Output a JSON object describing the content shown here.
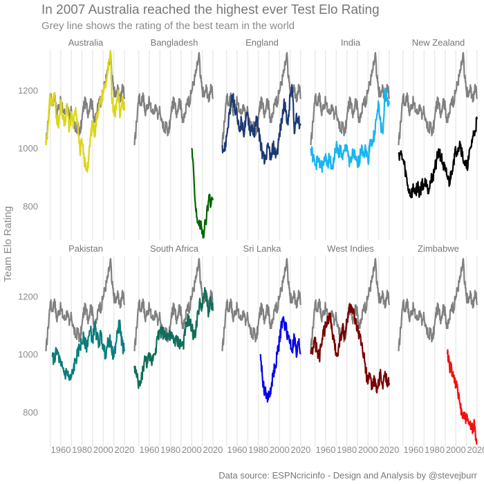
{
  "chart_data": {
    "type": "line",
    "title": "In 2007 Australia reached the highest ever Test Elo Rating",
    "subtitle": "Grey line shows the rating of the best team in the world",
    "ylabel": "Team Elo Rating",
    "caption": "Data source: ESPNcricinfo - Design and Analysis by @stevejburr",
    "x_ticks": [
      "1960",
      "1980",
      "2000",
      "2020"
    ],
    "y_ticks": [
      "800",
      "1000",
      "1200"
    ],
    "xlim": [
      1945,
      2022
    ],
    "ylim": [
      680,
      1340
    ],
    "grid": true,
    "best_team": {
      "color": "#808080",
      "x": [
        1946,
        1948,
        1950,
        1952,
        1954,
        1956,
        1958,
        1960,
        1962,
        1964,
        1966,
        1968,
        1970,
        1972,
        1974,
        1976,
        1978,
        1980,
        1982,
        1984,
        1986,
        1988,
        1990,
        1992,
        1994,
        1996,
        1998,
        2000,
        2002,
        2004,
        2006,
        2007,
        2008,
        2010,
        2012,
        2014,
        2016,
        2018,
        2020
      ],
      "values": [
        1010,
        1090,
        1180,
        1150,
        1190,
        1120,
        1150,
        1160,
        1130,
        1120,
        1150,
        1100,
        1130,
        1090,
        1060,
        1080,
        1050,
        1100,
        1160,
        1150,
        1120,
        1170,
        1140,
        1090,
        1120,
        1170,
        1160,
        1200,
        1230,
        1260,
        1300,
        1330,
        1250,
        1200,
        1180,
        1210,
        1160,
        1220,
        1170
      ]
    },
    "panels": [
      {
        "team": "Australia",
        "color": "#dcd616",
        "x": [
          1946,
          1948,
          1950,
          1952,
          1954,
          1956,
          1958,
          1960,
          1962,
          1964,
          1966,
          1968,
          1970,
          1972,
          1974,
          1976,
          1978,
          1980,
          1982,
          1984,
          1986,
          1988,
          1990,
          1992,
          1994,
          1996,
          1998,
          2000,
          2002,
          2004,
          2006,
          2007,
          2008,
          2010,
          2012,
          2014,
          2016,
          2018,
          2020
        ],
        "values": [
          1010,
          1090,
          1180,
          1150,
          1190,
          1110,
          1070,
          1160,
          1100,
          1080,
          1150,
          1060,
          1120,
          1080,
          1140,
          1090,
          990,
          1020,
          960,
          930,
          950,
          1040,
          1090,
          1050,
          1110,
          1150,
          1160,
          1200,
          1220,
          1260,
          1300,
          1330,
          1180,
          1120,
          1130,
          1200,
          1110,
          1180,
          1130
        ]
      },
      {
        "team": "Bangladesh",
        "color": "#006400",
        "x": [
          2000,
          2002,
          2003,
          2004,
          2005,
          2006,
          2007,
          2008,
          2009,
          2010,
          2011,
          2012,
          2013,
          2014,
          2015,
          2016,
          2017,
          2018,
          2019,
          2020
        ],
        "values": [
          1000,
          900,
          820,
          780,
          760,
          740,
          750,
          720,
          730,
          710,
          700,
          720,
          740,
          760,
          790,
          820,
          840,
          800,
          830,
          820
        ]
      },
      {
        "team": "England",
        "color": "#1b3a72",
        "x": [
          1946,
          1948,
          1950,
          1952,
          1954,
          1956,
          1958,
          1960,
          1962,
          1964,
          1966,
          1968,
          1970,
          1972,
          1974,
          1976,
          1978,
          1980,
          1982,
          1984,
          1986,
          1988,
          1990,
          1992,
          1994,
          1996,
          1998,
          2000,
          2002,
          2004,
          2006,
          2008,
          2010,
          2012,
          2014,
          2016,
          2018,
          2020
        ],
        "values": [
          1010,
          990,
          1040,
          1100,
          1150,
          1180,
          1130,
          1110,
          1060,
          1100,
          1050,
          1090,
          1120,
          1060,
          1080,
          1040,
          1110,
          1070,
          1020,
          980,
          950,
          990,
          1000,
          960,
          1010,
          980,
          990,
          1050,
          1090,
          1150,
          1130,
          1080,
          1180,
          1210,
          1050,
          1120,
          1090,
          1080
        ]
      },
      {
        "team": "India",
        "color": "#1ab5ef",
        "x": [
          1946,
          1948,
          1950,
          1952,
          1954,
          1956,
          1958,
          1960,
          1962,
          1964,
          1966,
          1968,
          1970,
          1972,
          1974,
          1976,
          1978,
          1980,
          1982,
          1984,
          1986,
          1988,
          1990,
          1992,
          1994,
          1996,
          1998,
          2000,
          2002,
          2004,
          2006,
          2008,
          2010,
          2012,
          2014,
          2016,
          2018,
          2020
        ],
        "values": [
          1000,
          970,
          940,
          950,
          960,
          930,
          940,
          980,
          950,
          970,
          930,
          960,
          1010,
          980,
          1000,
          960,
          990,
          1010,
          960,
          950,
          990,
          960,
          940,
          960,
          1010,
          980,
          1000,
          950,
          1030,
          1010,
          1050,
          1100,
          1150,
          1080,
          1050,
          1200,
          1170,
          1150
        ]
      },
      {
        "team": "New Zealand",
        "color": "#000000",
        "x": [
          1946,
          1948,
          1950,
          1952,
          1954,
          1956,
          1958,
          1960,
          1962,
          1964,
          1966,
          1968,
          1970,
          1972,
          1974,
          1976,
          1978,
          1980,
          1982,
          1984,
          1986,
          1988,
          1990,
          1992,
          1994,
          1996,
          1998,
          2000,
          2002,
          2004,
          2006,
          2008,
          2010,
          2012,
          2014,
          2016,
          2018,
          2020
        ],
        "values": [
          980,
          980,
          960,
          930,
          880,
          850,
          840,
          860,
          850,
          870,
          840,
          880,
          870,
          890,
          860,
          880,
          900,
          930,
          960,
          990,
          970,
          940,
          920,
          900,
          880,
          920,
          960,
          990,
          1000,
          1020,
          980,
          950,
          930,
          960,
          1000,
          1040,
          1060,
          1100
        ]
      },
      {
        "team": "Pakistan",
        "color": "#0a7c7c",
        "x": [
          1952,
          1954,
          1956,
          1958,
          1960,
          1962,
          1964,
          1966,
          1968,
          1970,
          1972,
          1974,
          1976,
          1978,
          1980,
          1982,
          1984,
          1986,
          1988,
          1990,
          1992,
          1994,
          1996,
          1998,
          2000,
          2002,
          2004,
          2006,
          2008,
          2010,
          2012,
          2014,
          2016,
          2018,
          2020
        ],
        "values": [
          990,
          980,
          1010,
          990,
          960,
          950,
          930,
          940,
          910,
          920,
          950,
          980,
          1000,
          1030,
          1040,
          1060,
          1020,
          1060,
          1080,
          1050,
          1100,
          1060,
          1040,
          1070,
          1020,
          1000,
          1030,
          1050,
          1010,
          990,
          1040,
          1090,
          1100,
          1030,
          1010
        ]
      },
      {
        "team": "South Africa",
        "color": "#116e5a",
        "x": [
          1946,
          1948,
          1950,
          1952,
          1954,
          1956,
          1958,
          1960,
          1962,
          1964,
          1966,
          1968,
          1970,
          1992,
          1994,
          1996,
          1998,
          2000,
          2002,
          2004,
          2006,
          2008,
          2010,
          2012,
          2014,
          2016,
          2018,
          2020
        ],
        "values": [
          960,
          920,
          890,
          900,
          950,
          980,
          970,
          990,
          970,
          1000,
          1020,
          1060,
          1080,
          1030,
          1080,
          1120,
          1110,
          1090,
          1060,
          1090,
          1140,
          1180,
          1160,
          1210,
          1200,
          1140,
          1190,
          1150
        ]
      },
      {
        "team": "Sri Lanka",
        "color": "#0000ee",
        "x": [
          1982,
          1984,
          1986,
          1988,
          1990,
          1992,
          1994,
          1996,
          1998,
          2000,
          2002,
          2004,
          2006,
          2008,
          2010,
          2012,
          2014,
          2016,
          2018,
          2020
        ],
        "values": [
          1000,
          910,
          870,
          860,
          850,
          880,
          930,
          960,
          1000,
          1050,
          1100,
          1120,
          1090,
          1060,
          1040,
          1010,
          1060,
          990,
          1040,
          1000
        ]
      },
      {
        "team": "West Indies",
        "color": "#7a0000",
        "x": [
          1946,
          1948,
          1950,
          1952,
          1954,
          1956,
          1958,
          1960,
          1962,
          1964,
          1966,
          1968,
          1970,
          1972,
          1974,
          1976,
          1978,
          1980,
          1982,
          1984,
          1986,
          1988,
          1990,
          1992,
          1994,
          1996,
          1998,
          2000,
          2002,
          2004,
          2006,
          2008,
          2010,
          2012,
          2014,
          2016,
          2018,
          2020
        ],
        "values": [
          1000,
          1020,
          1040,
          1010,
          990,
          1030,
          1070,
          1100,
          1120,
          1130,
          1080,
          1040,
          1000,
          1020,
          1060,
          1100,
          1050,
          1120,
          1150,
          1170,
          1140,
          1110,
          1080,
          1060,
          1030,
          990,
          940,
          900,
          930,
          880,
          920,
          870,
          900,
          930,
          880,
          940,
          910,
          900
        ]
      },
      {
        "team": "Zimbabwe",
        "color": "#f01010",
        "x": [
          1992,
          1994,
          1996,
          1998,
          2000,
          2002,
          2004,
          2006,
          2011,
          2012,
          2013,
          2014,
          2015,
          2016,
          2017,
          2018,
          2019,
          2020
        ],
        "values": [
          1000,
          960,
          950,
          920,
          900,
          860,
          830,
          790,
          770,
          760,
          760,
          740,
          760,
          740,
          760,
          750,
          700,
          690
        ]
      }
    ]
  }
}
